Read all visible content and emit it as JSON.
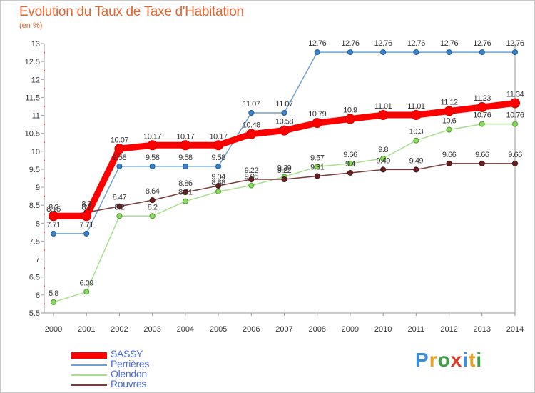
{
  "header": {
    "title": "Evolution du Taux de Taxe d'Habitation",
    "subtitle": "(en %)"
  },
  "chart_data": {
    "type": "line",
    "title": "Evolution du Taux de Taxe d'Habitation",
    "ylabel": "(en %)",
    "xlabel": "",
    "ylim": [
      5.5,
      13
    ],
    "yticks": [
      "5.5",
      "6",
      "6.5",
      "7",
      "7.5",
      "8",
      "8.5",
      "9",
      "9.5",
      "10",
      "10.5",
      "11",
      "11.5",
      "12",
      "12.5",
      "13"
    ],
    "x": [
      "2000",
      "2001",
      "2002",
      "2003",
      "2004",
      "2005",
      "2006",
      "2007",
      "2008",
      "2009",
      "2010",
      "2011",
      "2012",
      "2013",
      "2014"
    ],
    "grid": false,
    "legend_position": "bottom-left",
    "series": [
      {
        "name": "SASSY",
        "color": "#ff0000",
        "values": [
          8.2,
          8.2,
          10.07,
          10.17,
          10.17,
          10.17,
          10.48,
          10.58,
          10.79,
          10.9,
          11.01,
          11.01,
          11.12,
          11.23,
          11.34
        ],
        "labels": [
          "8.2",
          "8.2",
          "10.07",
          "10.17",
          "10.17",
          "10.17",
          "10.48",
          "10.58",
          "10.79",
          "10.9",
          "11.01",
          "11.01",
          "11.12",
          "11.23",
          "11.34"
        ]
      },
      {
        "name": "Perrières",
        "color": "#6fa0d0",
        "values": [
          7.71,
          7.71,
          9.58,
          9.58,
          9.58,
          9.58,
          11.07,
          11.07,
          12.76,
          12.76,
          12.76,
          12.76,
          12.76,
          12.76,
          12.76
        ],
        "labels": [
          "7.71",
          "7.71",
          "9.58",
          "9.58",
          "9.58",
          "9.58",
          "11.07",
          "11.07",
          "12.76",
          "12.76",
          "12.76",
          "12.76",
          "12.76",
          "12.76",
          "12.76"
        ]
      },
      {
        "name": "Olendon",
        "color": "#a6e08a",
        "values": [
          5.8,
          6.09,
          8.2,
          8.2,
          8.61,
          8.88,
          9.05,
          9.29,
          9.57,
          9.66,
          9.8,
          10.3,
          10.6,
          10.76,
          10.76
        ],
        "labels": [
          "5.8",
          "6.09",
          "8.2",
          "8.2",
          "8.61",
          "8.88",
          "9.05",
          "9.29",
          "9.57",
          "9.66",
          "9.8",
          "10.3",
          "10.6",
          "10.76",
          "10.76"
        ]
      },
      {
        "name": "Rouvres",
        "color": "#7a3a3a",
        "values": [
          8.15,
          8.3,
          8.47,
          8.64,
          8.86,
          9.04,
          9.22,
          9.22,
          9.31,
          9.4,
          9.49,
          9.49,
          9.66,
          9.66,
          9.66
        ],
        "labels": [
          "8.15",
          "8.3",
          "8.47",
          "8.64",
          "8.86",
          "9.04",
          "9.22",
          "9.22",
          "9.31",
          "9.4",
          "9.49",
          "9.49",
          "9.66",
          "9.66",
          "9.66"
        ]
      }
    ]
  },
  "logo": {
    "text": "Proxiti"
  }
}
